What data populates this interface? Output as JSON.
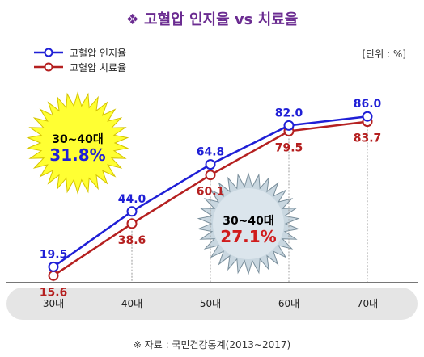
{
  "title": "❖ 고혈압 인지율 vs 치료율",
  "unit": "[단위 : %]",
  "source": "※ 자료 : 국민건강통계(2013~2017)",
  "colors": {
    "awareness": "#1f1fd6",
    "treatment": "#b52020",
    "title": "#6b2c91"
  },
  "callouts": [
    {
      "label": "30~40대",
      "value": "31.8%",
      "color": "#ffff33"
    },
    {
      "label": "30~40대",
      "value": "27.1%",
      "color": "#c9d7e0"
    }
  ],
  "chart_data": {
    "type": "line",
    "categories": [
      "30대",
      "40대",
      "50대",
      "60대",
      "70대"
    ],
    "series": [
      {
        "name": "고혈압 인지율",
        "values": [
          19.5,
          44.0,
          64.8,
          82.0,
          86.0
        ]
      },
      {
        "name": "고혈압 치료율",
        "values": [
          15.6,
          38.6,
          60.1,
          79.5,
          83.7
        ]
      }
    ],
    "ylim": [
      0,
      100
    ],
    "grid": false,
    "legend": "top-left"
  }
}
